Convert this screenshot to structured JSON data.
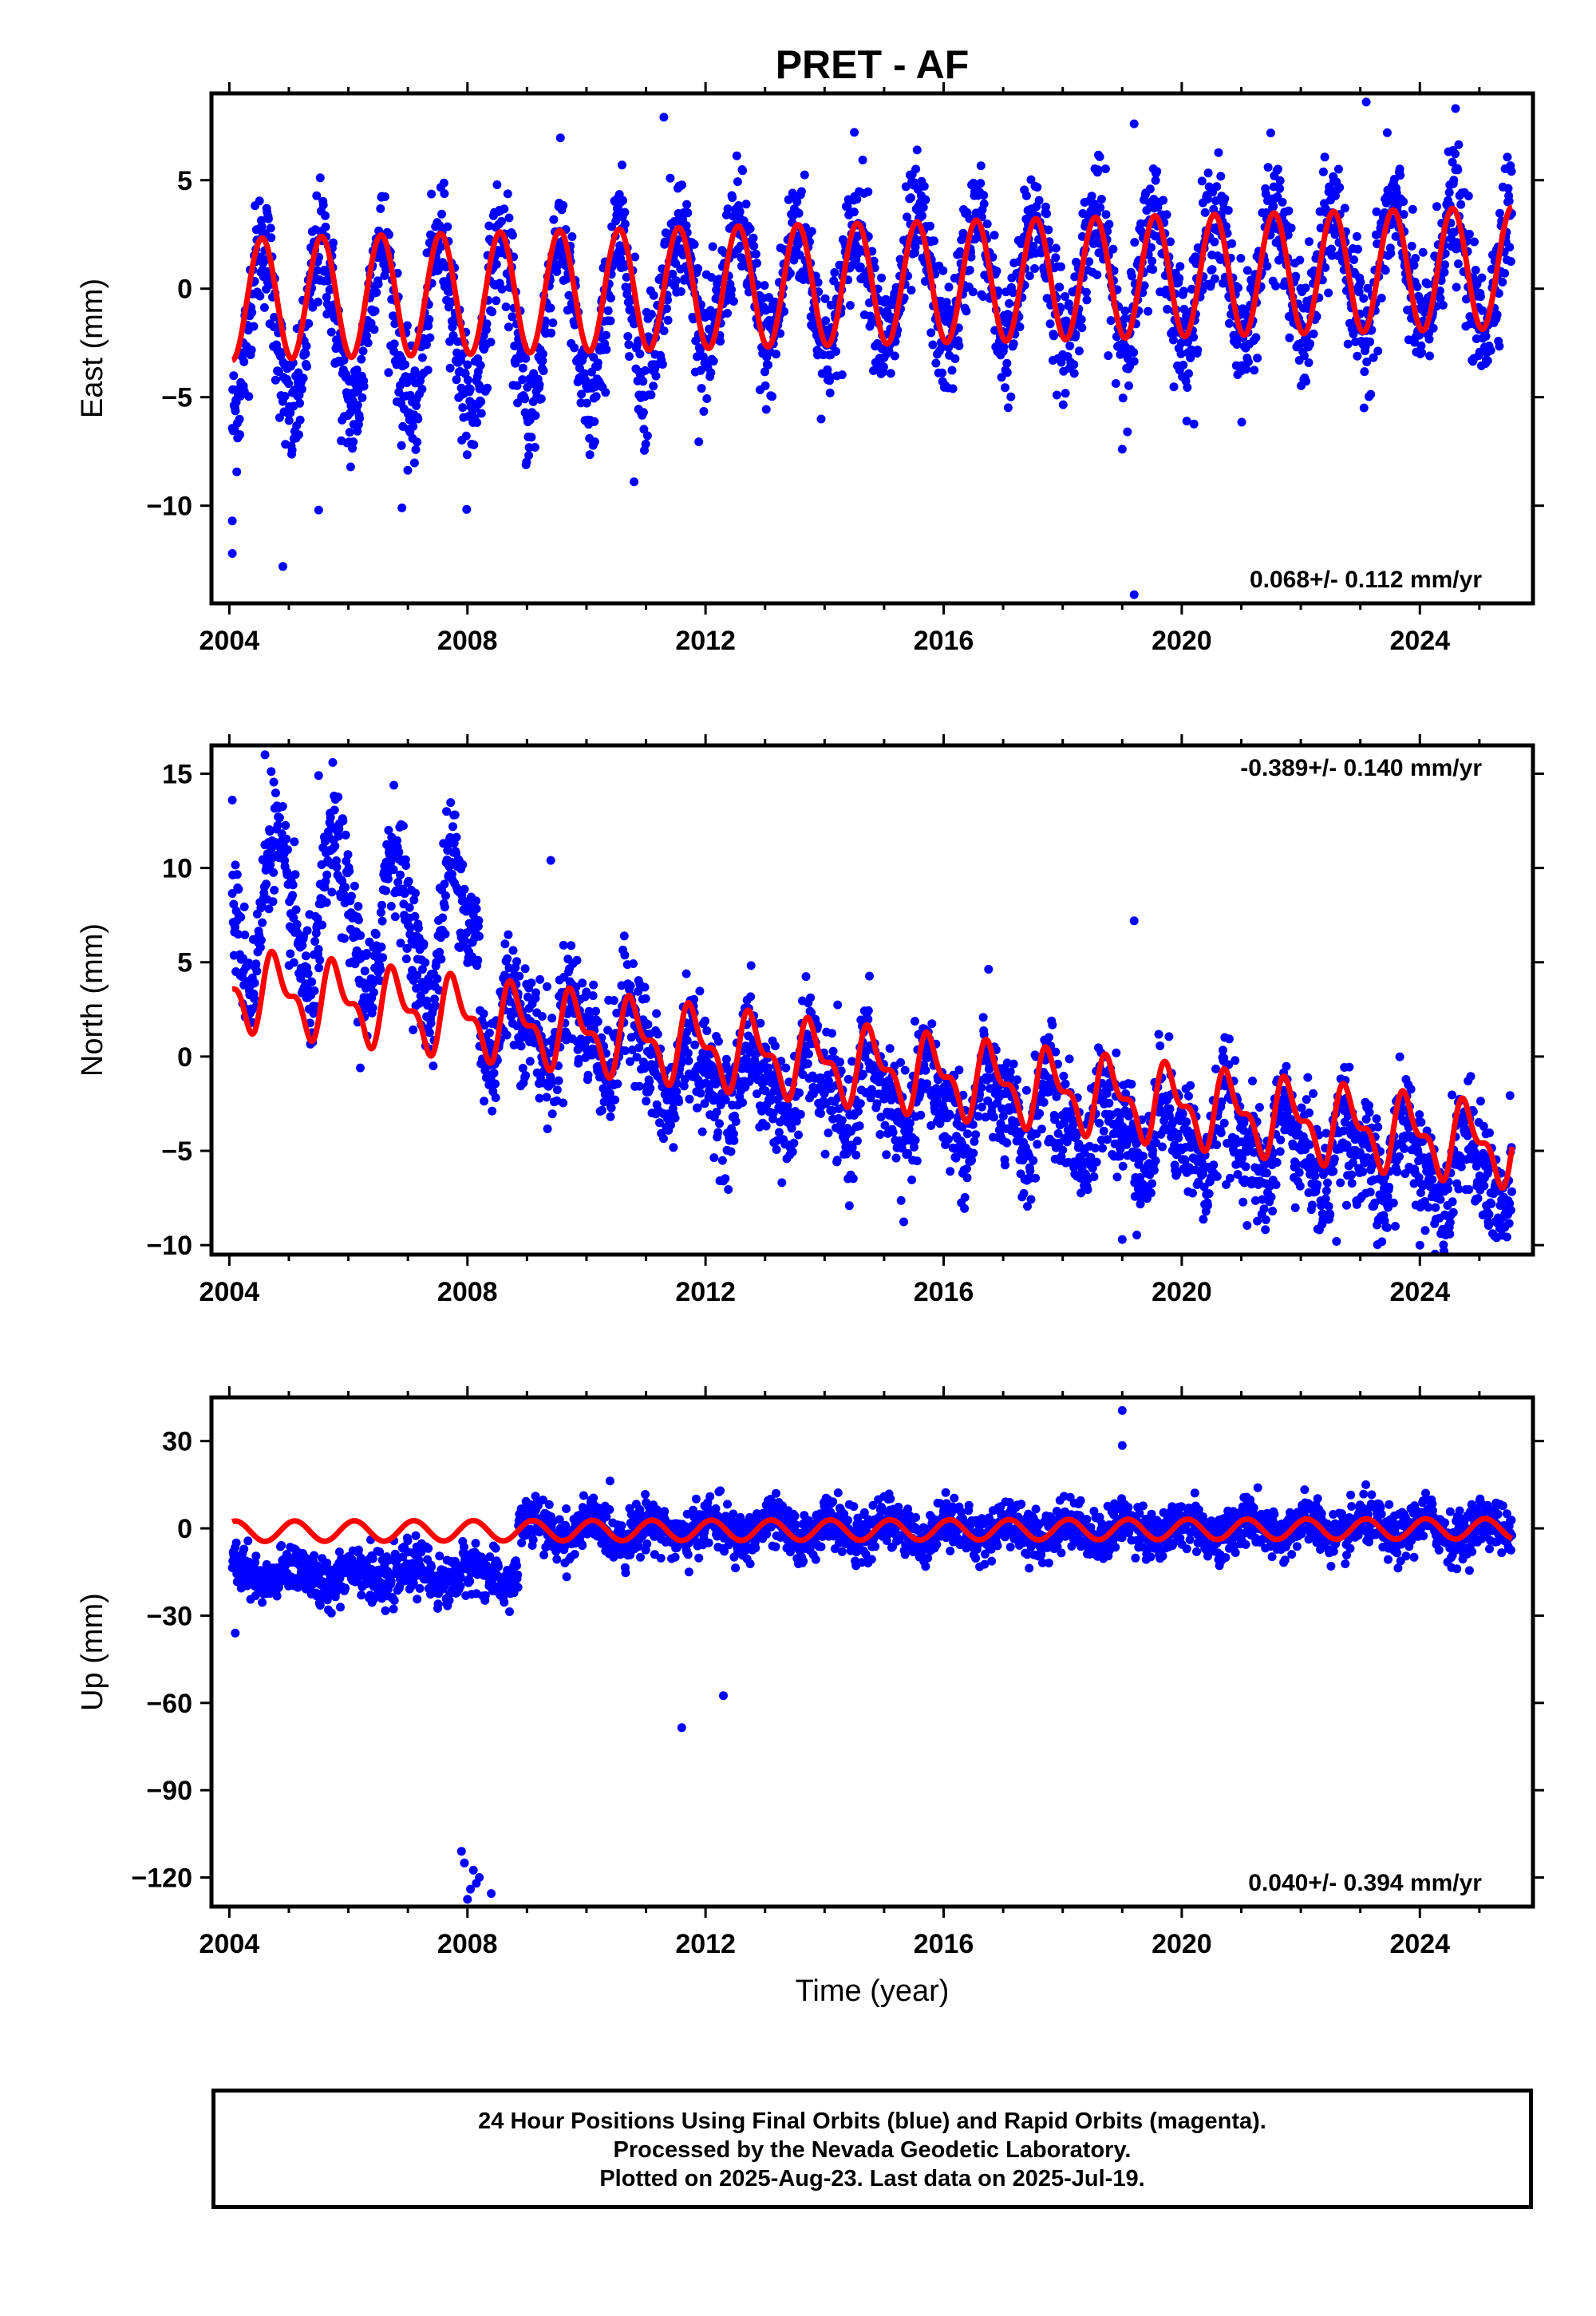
{
  "title": "PRET - AF",
  "colors": {
    "data": "#0000ff",
    "model": "#ff0000",
    "axis": "#000000"
  },
  "chart_data": [
    {
      "type": "scatter",
      "panel": "east",
      "ylabel": "East (mm)",
      "xlabel": "",
      "xlim": [
        2003.7,
        2025.9
      ],
      "ylim": [
        -14.5,
        9
      ],
      "xticks": [
        2004,
        2008,
        2012,
        2016,
        2020,
        2024
      ],
      "xtick_labels": [
        "2004",
        "2008",
        "2012",
        "2016",
        "2020",
        "2024"
      ],
      "yticks": [
        -10,
        -5,
        0,
        5
      ],
      "ytick_labels": [
        "−10",
        "−5",
        "0",
        "5"
      ],
      "rate_text": "0.068+/- 0.112 mm/yr",
      "rate_position": "bottom-right",
      "data_start": 2004.05,
      "data_end": 2025.55,
      "model": {
        "offset": -0.5,
        "trend": 0.068,
        "annual_amp": 2.8,
        "annual_phase": 0.3,
        "semiannual_amp": 0.0,
        "steps": []
      },
      "scatter": {
        "noise": 1.4,
        "extra_amp": 1.2,
        "extra_amp_until": 2011.0,
        "early_bias": -1.5,
        "early_bias_until": 2011.0
      },
      "outliers": [
        [
          2004.05,
          -12.2
        ],
        [
          2004.05,
          -10.7
        ],
        [
          2004.9,
          -12.8
        ],
        [
          2005.5,
          -10.2
        ],
        [
          2006.9,
          -10.1
        ],
        [
          2010.8,
          -8.9
        ],
        [
          2011.3,
          7.9
        ],
        [
          2014.5,
          7.2
        ],
        [
          2019.2,
          7.6
        ],
        [
          2019.2,
          -14.1
        ],
        [
          2019.0,
          -7.4
        ],
        [
          2023.1,
          8.6
        ],
        [
          2024.6,
          8.3
        ]
      ]
    },
    {
      "type": "scatter",
      "panel": "north",
      "ylabel": "North (mm)",
      "xlabel": "",
      "xlim": [
        2003.7,
        2025.9
      ],
      "ylim": [
        -10.5,
        16.5
      ],
      "xticks": [
        2004,
        2008,
        2012,
        2016,
        2020,
        2024
      ],
      "xtick_labels": [
        "2004",
        "2008",
        "2012",
        "2016",
        "2020",
        "2024"
      ],
      "yticks": [
        -10,
        -5,
        0,
        5,
        10,
        15
      ],
      "ytick_labels": [
        "−10",
        "−5",
        "0",
        "5",
        "10",
        "15"
      ],
      "rate_text": "-0.389+/- 0.140 mm/yr",
      "rate_position": "top-right",
      "data_start": 2004.05,
      "data_end": 2025.55,
      "model": {
        "offset": 3.6,
        "trend": -0.389,
        "annual_amp": 1.7,
        "annual_phase": 0.55,
        "semiannual_amp": 0.9,
        "steps": []
      },
      "scatter": {
        "noise": 1.5,
        "extra_amp": 2.2,
        "extra_amp_until": 2008.0,
        "early_bias": 4.5,
        "early_bias_until": 2008.2,
        "late_bias": -1.5,
        "late_bias_from": 2011.0
      },
      "outliers": [
        [
          2004.6,
          16.0
        ],
        [
          2004.05,
          13.6
        ],
        [
          2005.5,
          14.9
        ],
        [
          2006.2,
          -0.6
        ],
        [
          2009.4,
          10.4
        ],
        [
          2012.3,
          -6.6
        ],
        [
          2019.2,
          7.2
        ],
        [
          2019.0,
          -9.7
        ],
        [
          2024.0,
          -10.0
        ],
        [
          2022.6,
          -9.8
        ]
      ]
    },
    {
      "type": "scatter",
      "panel": "up",
      "ylabel": "Up (mm)",
      "xlabel": "Time (year)",
      "xlim": [
        2003.7,
        2025.9
      ],
      "ylim": [
        -130,
        45
      ],
      "xticks": [
        2004,
        2008,
        2012,
        2016,
        2020,
        2024
      ],
      "xtick_labels": [
        "2004",
        "2008",
        "2012",
        "2016",
        "2020",
        "2024"
      ],
      "yticks": [
        -120,
        -90,
        -60,
        -30,
        0,
        30
      ],
      "ytick_labels": [
        "−120",
        "−90",
        "−60",
        "−30",
        "0",
        "30"
      ],
      "rate_text": "0.040+/- 0.394 mm/yr",
      "rate_position": "bottom-right",
      "data_start": 2004.05,
      "data_end": 2025.55,
      "model": {
        "offset": -1.0,
        "trend": 0.04,
        "annual_amp": 3.5,
        "annual_phase": 0.85,
        "semiannual_amp": 0.0,
        "steps": []
      },
      "scatter": {
        "noise": 4.2,
        "extra_amp": 0.0,
        "extra_amp_until": 2004.0,
        "early_bias": -15.0,
        "early_bias_until": 2008.85
      },
      "outliers": [
        [
          2004.1,
          -36.0
        ],
        [
          2011.6,
          -68.5
        ],
        [
          2012.3,
          -57.5
        ],
        [
          2019.0,
          40.5
        ],
        [
          2019.0,
          28.5
        ],
        [
          2007.9,
          -111.0
        ],
        [
          2007.95,
          -115.0
        ],
        [
          2008.1,
          -117.5
        ],
        [
          2008.2,
          -120.0
        ],
        [
          2008.05,
          -124.0
        ],
        [
          2008.15,
          -122.0
        ],
        [
          2008.4,
          -125.5
        ],
        [
          2008.0,
          -127.5
        ]
      ]
    }
  ],
  "footer": {
    "line1": "24 Hour Positions Using Final Orbits (blue) and Rapid Orbits (magenta).",
    "line2": "Processed by the Nevada Geodetic Laboratory.",
    "line3": "Plotted on 2025-Aug-23. Last data on 2025-Jul-19."
  }
}
